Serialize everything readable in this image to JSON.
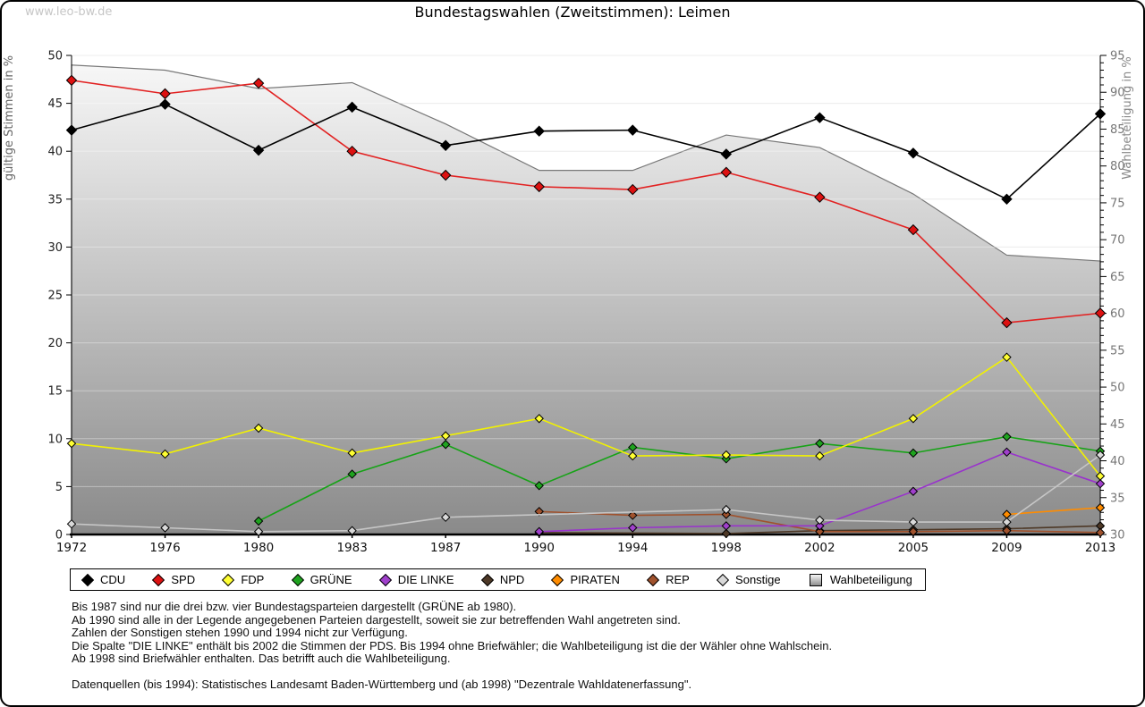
{
  "watermark": "www.leo-bw.de",
  "title": "Bundestagswahlen (Zweitstimmen): Leimen",
  "chart_data": {
    "type": "line",
    "x_years": [
      1972,
      1976,
      1980,
      1983,
      1987,
      1990,
      1994,
      1998,
      2002,
      2005,
      2009,
      2013
    ],
    "left_axis": {
      "label": "gültige Stimmen in %",
      "min": 0,
      "max": 50,
      "tick_step": 5
    },
    "right_axis": {
      "label": "Wahlbeteiligung in %",
      "min": 30,
      "max": 95,
      "tick_step": 5,
      "minor_step": 1
    },
    "grid": true,
    "legend_position": "bottom",
    "series": [
      {
        "name": "CDU",
        "type": "line",
        "axis": "left",
        "line_color": "#000000",
        "fill_color": "#000000",
        "marker": "diamond",
        "marker_size": 5.5,
        "values": [
          42.2,
          44.9,
          40.1,
          44.6,
          40.6,
          42.1,
          42.2,
          39.7,
          43.5,
          39.8,
          35.0,
          43.9
        ]
      },
      {
        "name": "SPD",
        "type": "line",
        "axis": "left",
        "line_color": "#e22222",
        "fill_color": "#dd1111",
        "marker": "diamond",
        "marker_size": 5.5,
        "values": [
          47.4,
          46.0,
          47.1,
          40.0,
          37.5,
          36.3,
          36.0,
          37.8,
          35.2,
          31.8,
          22.1,
          23.1
        ]
      },
      {
        "name": "FDP",
        "type": "line",
        "axis": "left",
        "line_color": "#f2f200",
        "fill_color": "#ffff33",
        "marker": "diamond",
        "marker_size": 4.5,
        "values": [
          9.5,
          8.4,
          11.1,
          8.5,
          10.3,
          12.1,
          8.2,
          8.3,
          8.2,
          12.1,
          18.5,
          6.1
        ]
      },
      {
        "name": "GRÜNE",
        "type": "line",
        "axis": "left",
        "line_color": "#17a317",
        "fill_color": "#1fa31f",
        "marker": "diamond",
        "marker_size": 4.5,
        "values": [
          null,
          null,
          1.4,
          6.3,
          9.4,
          5.1,
          9.1,
          7.9,
          9.5,
          8.5,
          10.2,
          8.7
        ]
      },
      {
        "name": "DIE LINKE",
        "type": "line",
        "axis": "left",
        "line_color": "#9933cc",
        "fill_color": "#a040cc",
        "marker": "diamond",
        "marker_size": 4.5,
        "values": [
          null,
          null,
          null,
          null,
          null,
          0.3,
          0.7,
          0.9,
          0.9,
          4.5,
          8.6,
          5.3
        ]
      },
      {
        "name": "NPD",
        "type": "line",
        "axis": "left",
        "line_color": "#4d3826",
        "fill_color": "#4d3826",
        "marker": "diamond",
        "marker_size": 4.5,
        "values": [
          null,
          null,
          null,
          null,
          null,
          0.2,
          null,
          0.1,
          0.4,
          0.5,
          0.6,
          0.9
        ]
      },
      {
        "name": "PIRATEN",
        "type": "line",
        "axis": "left",
        "line_color": "#ff8c00",
        "fill_color": "#ff8c00",
        "marker": "diamond",
        "marker_size": 4.5,
        "values": [
          null,
          null,
          null,
          null,
          null,
          null,
          null,
          null,
          null,
          null,
          2.1,
          2.8
        ]
      },
      {
        "name": "REP",
        "type": "line",
        "axis": "left",
        "line_color": "#a0522d",
        "fill_color": "#a0522d",
        "marker": "diamond",
        "marker_size": 4.5,
        "values": [
          null,
          null,
          null,
          null,
          null,
          2.4,
          2.0,
          2.1,
          0.3,
          0.3,
          0.4,
          0.2
        ]
      },
      {
        "name": "Sonstige",
        "type": "line",
        "axis": "left",
        "line_color": "#c6c6c6",
        "fill_color": "#d9d9d9",
        "marker": "diamond",
        "marker_size": 4.5,
        "values": [
          1.1,
          0.7,
          0.3,
          0.4,
          1.8,
          null,
          null,
          2.6,
          1.5,
          1.3,
          1.3,
          8.3
        ]
      },
      {
        "name": "Wahlbeteiligung",
        "type": "area",
        "axis": "right",
        "line_color": "#787878",
        "fill_gradient": [
          "#f9f9f9",
          "#8a8a8a"
        ],
        "marker": "none",
        "values": [
          93.7,
          93.0,
          90.5,
          91.3,
          85.7,
          79.4,
          79.4,
          84.2,
          82.5,
          76.2,
          67.9,
          67.1
        ]
      }
    ],
    "legend": [
      "CDU",
      "SPD",
      "FDP",
      "GRÜNE",
      "DIE LINKE",
      "NPD",
      "PIRATEN",
      "REP",
      "Sonstige",
      "Wahlbeteiligung"
    ]
  },
  "footnotes": [
    "Bis 1987 sind nur die drei bzw. vier Bundestagsparteien dargestellt (GRÜNE ab 1980).",
    "Ab 1990 sind alle in der Legende angegebenen Parteien dargestellt, soweit sie zur betreffenden Wahl angetreten sind.",
    "Zahlen der Sonstigen stehen 1990 und 1994 nicht zur Verfügung.",
    "Die Spalte \"DIE LINKE\" enthält bis 2002 die Stimmen der PDS. Bis 1994 ohne Briefwähler; die Wahlbeteiligung ist die der Wähler ohne Wahlschein.",
    "Ab 1998 sind Briefwähler enthalten. Das betrifft auch die Wahlbeteiligung."
  ],
  "source_line": "Datenquellen (bis 1994): Statistisches Landesamt Baden-Württemberg und (ab 1998) \"Dezentrale Wahldatenerfassung\"."
}
